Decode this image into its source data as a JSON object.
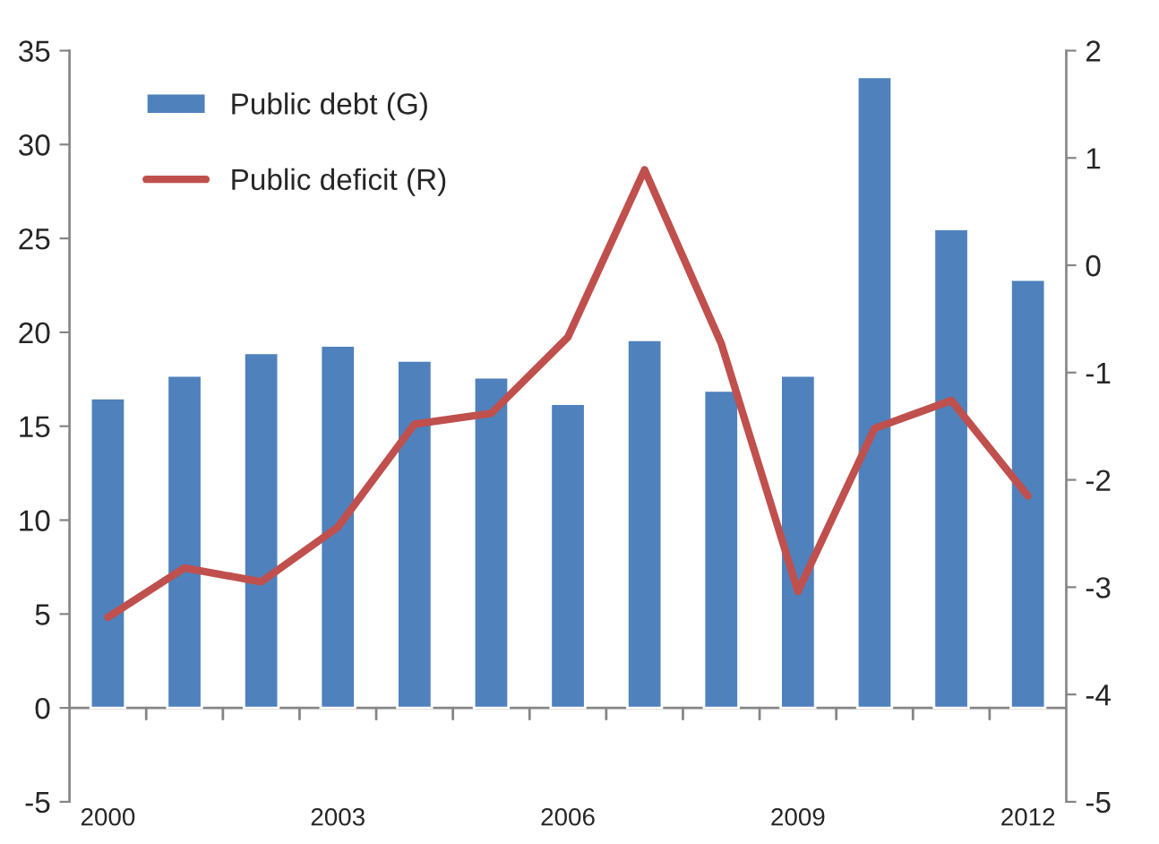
{
  "chart_data": {
    "type": "bar",
    "categories": [
      "2000",
      null,
      null,
      "2003",
      null,
      null,
      "2006",
      null,
      null,
      "2009",
      null,
      null,
      "2012"
    ],
    "series": [
      {
        "name": "Public debt (G)",
        "color": "#4f81bd",
        "values": [
          16.5,
          17.7,
          18.9,
          19.3,
          18.5,
          17.6,
          16.2,
          19.6,
          16.9,
          17.7,
          33.6,
          25.5,
          22.8
        ]
      },
      {
        "name": "Public deficit (R)",
        "type": "line",
        "axis": "y2",
        "color": "#c0504d",
        "values": [
          -3.28,
          -2.82,
          -2.95,
          -2.44,
          -1.48,
          -1.38,
          -0.67,
          0.89,
          -0.73,
          -3.04,
          -1.52,
          -1.26,
          -2.15
        ]
      }
    ],
    "ylim": [
      -5,
      35
    ],
    "yticks": [
      -5,
      0,
      5,
      10,
      15,
      20,
      25,
      30,
      35
    ],
    "y2lim": [
      -5,
      2
    ],
    "y2ticks": [
      -5,
      -4,
      -3,
      -2,
      -1,
      0,
      1,
      2
    ],
    "ref_lines": [
      {
        "axis": "y",
        "value": 0,
        "color": "#868686"
      }
    ],
    "legend": "top left",
    "grid": false
  }
}
